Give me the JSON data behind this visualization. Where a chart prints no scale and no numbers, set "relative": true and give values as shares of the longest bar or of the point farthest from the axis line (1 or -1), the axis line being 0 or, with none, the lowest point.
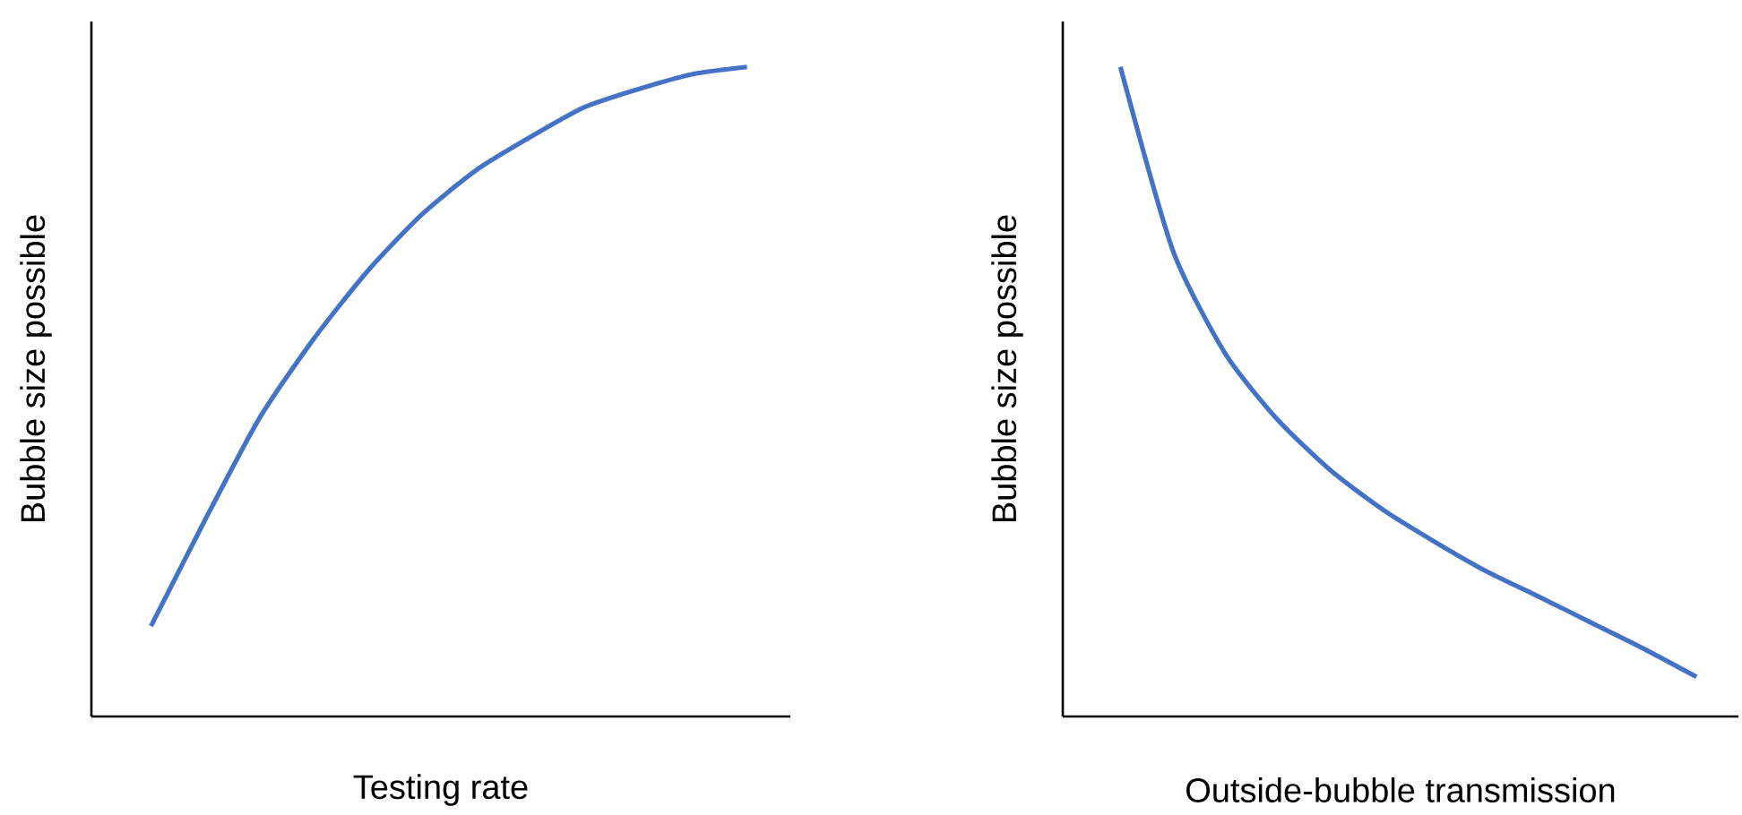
{
  "chart_data": [
    {
      "type": "line",
      "relative": true,
      "xlabel": "Testing rate",
      "ylabel": "Bubble size possible",
      "color": "#4472c4",
      "categories": [
        null,
        null,
        null,
        null,
        null,
        null,
        null,
        null,
        null,
        null,
        null,
        null
      ],
      "values": [
        0.139,
        0.303,
        0.459,
        0.581,
        0.686,
        0.773,
        0.841,
        0.892,
        0.938,
        0.966,
        0.989,
        1
      ]
    },
    {
      "type": "line",
      "relative": true,
      "xlabel": "Outside-bubble transmission",
      "ylabel": "Bubble size possible",
      "color": "#4472c4",
      "categories": [
        null,
        null,
        null,
        null,
        null,
        null,
        null,
        null,
        null,
        null,
        null,
        null
      ],
      "values": [
        1,
        0.718,
        0.559,
        0.457,
        0.38,
        0.319,
        0.269,
        0.223,
        0.184,
        0.144,
        0.104,
        0.061
      ]
    }
  ]
}
